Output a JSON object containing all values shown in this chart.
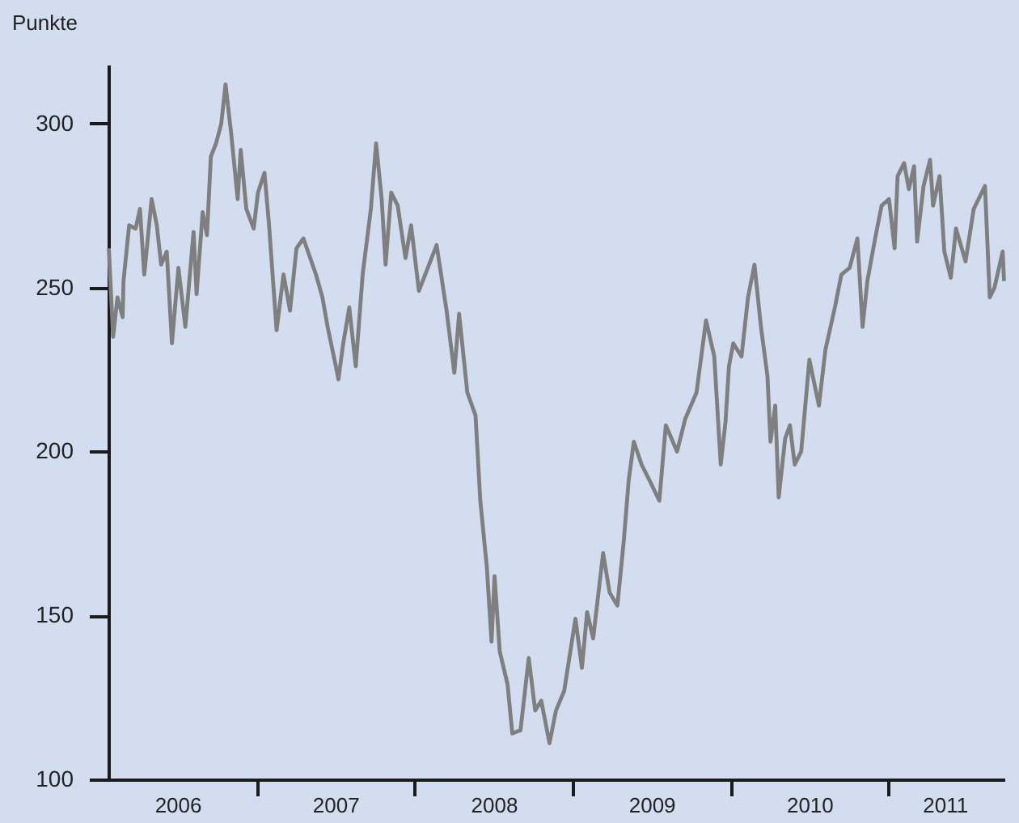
{
  "chart_data": {
    "type": "line",
    "ylabel": "Punkte",
    "xlim": [
      "2006-01-23",
      "2011-09-26"
    ],
    "ylim": [
      100,
      318
    ],
    "yticks": [
      100,
      150,
      200,
      250,
      300
    ],
    "xticks": [
      {
        "value": "2006-07-02",
        "label": "2006"
      },
      {
        "value": "2007-01-01",
        "label": null
      },
      {
        "value": "2007-07-02",
        "label": "2007"
      },
      {
        "value": "2008-01-01",
        "label": null
      },
      {
        "value": "2008-07-02",
        "label": "2008"
      },
      {
        "value": "2009-01-01",
        "label": null
      },
      {
        "value": "2009-07-02",
        "label": "2009"
      },
      {
        "value": "2010-01-01",
        "label": null
      },
      {
        "value": "2010-07-02",
        "label": "2010"
      },
      {
        "value": "2011-01-01",
        "label": null
      },
      {
        "value": "2011-05-11",
        "label": "2011"
      }
    ],
    "grid": false,
    "x": [
      "2006-01-24",
      "2006-02-03",
      "2006-02-13",
      "2006-02-25",
      "2006-02-27",
      "2006-03-12",
      "2006-03-27",
      "2006-04-06",
      "2006-04-16",
      "2006-05-03",
      "2006-05-15",
      "2006-05-25",
      "2006-06-07",
      "2006-06-19",
      "2006-07-04",
      "2006-07-20",
      "2006-08-08",
      "2006-08-15",
      "2006-08-29",
      "2006-09-08",
      "2006-09-17",
      "2006-09-29",
      "2006-10-11",
      "2006-10-21",
      "2006-11-03",
      "2006-11-18",
      "2006-11-25",
      "2006-12-08",
      "2006-12-25",
      "2007-01-04",
      "2007-01-19",
      "2007-01-29",
      "2007-02-16",
      "2007-03-04",
      "2007-03-19",
      "2007-04-03",
      "2007-04-19",
      "2007-05-18",
      "2007-06-02",
      "2007-06-14",
      "2007-07-03",
      "2007-07-09",
      "2007-07-19",
      "2007-08-03",
      "2007-08-18",
      "2007-09-03",
      "2007-09-22",
      "2007-10-04",
      "2007-10-17",
      "2007-10-26",
      "2007-11-08",
      "2007-11-23",
      "2007-12-11",
      "2007-12-24",
      "2008-01-11",
      "2008-02-21",
      "2008-03-15",
      "2008-04-02",
      "2008-04-13",
      "2008-05-02",
      "2008-05-21",
      "2008-06-01",
      "2008-06-16",
      "2008-06-27",
      "2008-07-04",
      "2008-07-16",
      "2008-08-03",
      "2008-08-14",
      "2008-09-02",
      "2008-09-21",
      "2008-10-06",
      "2008-10-20",
      "2008-11-08",
      "2008-11-23",
      "2008-12-12",
      "2009-01-07",
      "2009-01-22",
      "2009-02-03",
      "2009-02-17",
      "2009-03-12",
      "2009-03-27",
      "2009-04-14",
      "2009-04-29",
      "2009-05-10",
      "2009-05-22",
      "2009-06-09",
      "2009-06-28",
      "2009-07-20",
      "2009-08-04",
      "2009-08-30",
      "2009-09-18",
      "2009-10-14",
      "2009-10-25",
      "2009-11-05",
      "2009-11-24",
      "2009-12-09",
      "2009-12-20",
      "2009-12-28",
      "2010-01-07",
      "2010-01-26",
      "2010-02-10",
      "2010-02-25",
      "2010-03-12",
      "2010-03-27",
      "2010-04-03",
      "2010-04-14",
      "2010-04-22",
      "2010-05-07",
      "2010-05-18",
      "2010-05-29",
      "2010-06-13",
      "2010-07-02",
      "2010-07-24",
      "2010-08-08",
      "2010-08-30",
      "2010-09-14",
      "2010-10-03",
      "2010-10-21",
      "2010-11-02",
      "2010-11-13",
      "2010-12-01",
      "2010-12-16",
      "2011-01-02",
      "2011-01-15",
      "2011-01-22",
      "2011-02-06",
      "2011-02-17",
      "2011-03-01",
      "2011-03-08",
      "2011-03-23",
      "2011-04-07",
      "2011-04-14",
      "2011-04-29",
      "2011-05-10",
      "2011-05-25",
      "2011-06-06",
      "2011-06-28",
      "2011-07-17",
      "2011-08-12",
      "2011-08-23",
      "2011-09-03",
      "2011-09-22",
      "2011-09-25"
    ],
    "series": [
      {
        "color": "#7f7f7f",
        "values": [
          262,
          235,
          247,
          241,
          252,
          269,
          268,
          274,
          254,
          277,
          269,
          257,
          261,
          233,
          256,
          238,
          267,
          248,
          273,
          266,
          290,
          294,
          300,
          312,
          297,
          277,
          292,
          274,
          268,
          279,
          285,
          270,
          237,
          254,
          243,
          262,
          265,
          254,
          247,
          238,
          226,
          222,
          232,
          244,
          226,
          254,
          274,
          294,
          277,
          257,
          279,
          275,
          259,
          269,
          249,
          263,
          243,
          224,
          242,
          218,
          211,
          185,
          165,
          142,
          162,
          139,
          129,
          114,
          115,
          137,
          121,
          124,
          111,
          121,
          127,
          149,
          134,
          151,
          143,
          169,
          157,
          153,
          173,
          191,
          203,
          196,
          191,
          185,
          208,
          200,
          210,
          218,
          229,
          240,
          229,
          196,
          209,
          226,
          233,
          229,
          247,
          257,
          238,
          223,
          203,
          214,
          186,
          204,
          208,
          196,
          200,
          228,
          214,
          231,
          244,
          254,
          256,
          265,
          238,
          252,
          265,
          275,
          277,
          262,
          284,
          288,
          280,
          287,
          264,
          281,
          289,
          275,
          284,
          261,
          253,
          268,
          258,
          274,
          281,
          247,
          250,
          261,
          252
        ]
      }
    ]
  }
}
